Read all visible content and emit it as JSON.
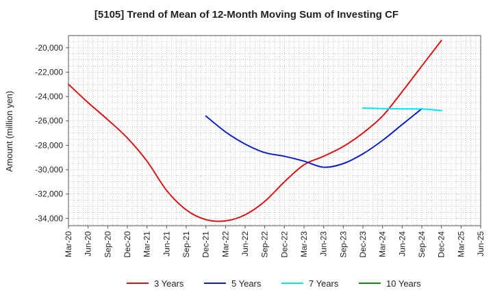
{
  "chart_data": {
    "type": "line",
    "title": "[5105]  Trend of Mean of 12-Month Moving Sum of Investing CF",
    "xlabel": "",
    "ylabel": "Amount (million yen)",
    "ylim": [
      -34600,
      -19000
    ],
    "yticks": [
      -34000,
      -32000,
      -30000,
      -28000,
      -26000,
      -24000,
      -22000,
      -20000
    ],
    "ytick_labels": [
      "-34,000",
      "-32,000",
      "-30,000",
      "-28,000",
      "-26,000",
      "-24,000",
      "-22,000",
      "-20,000"
    ],
    "x_labels": [
      "Mar-20",
      "Jun-20",
      "Sep-20",
      "Dec-20",
      "Mar-21",
      "Jun-21",
      "Sep-21",
      "Dec-21",
      "Mar-22",
      "Jun-22",
      "Sep-22",
      "Dec-22",
      "Mar-23",
      "Jun-23",
      "Sep-23",
      "Dec-23",
      "Mar-24",
      "Jun-24",
      "Sep-24",
      "Dec-24",
      "Mar-25",
      "Jun-25"
    ],
    "grid": true,
    "legend_position": "bottom",
    "series": [
      {
        "name": "3 Years",
        "color": "#dd1111",
        "start_index": 0,
        "values": [
          -23000,
          -24500,
          -25900,
          -27400,
          -29300,
          -31700,
          -33300,
          -34100,
          -34200,
          -33700,
          -32600,
          -31000,
          -29600,
          -28900,
          -28100,
          -27000,
          -25600,
          -23600,
          -21500,
          -19400
        ]
      },
      {
        "name": "5 Years",
        "color": "#0a1ec8",
        "start_index": 7,
        "values": [
          -25600,
          -26900,
          -27900,
          -28600,
          -28900,
          -29300,
          -29800,
          -29500,
          -28700,
          -27600,
          -26300,
          -25000
        ]
      },
      {
        "name": "7 Years",
        "color": "#00e5ee",
        "start_index": 15,
        "values": [
          -24950,
          -24990,
          -25010,
          -25020,
          -25150
        ]
      },
      {
        "name": "10 Years",
        "color": "#118811",
        "start_index": 0,
        "values": []
      }
    ]
  }
}
